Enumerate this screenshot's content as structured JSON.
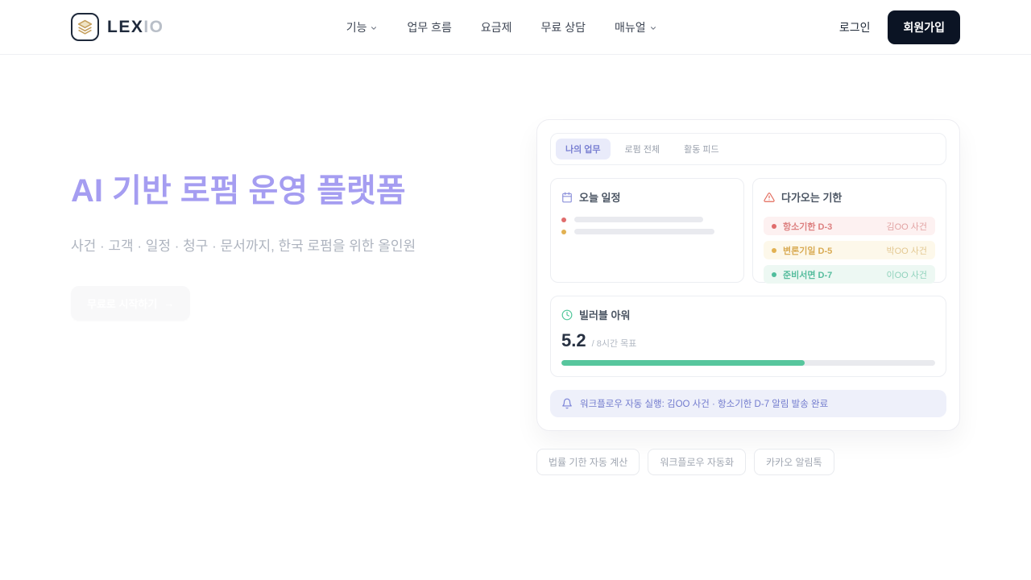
{
  "colors": {
    "brand_dark": "#0b1424",
    "accent_purple": "#a59df1",
    "tab_active_bg": "#e9ebfa",
    "tab_active_text": "#7a80d2",
    "status_red": "#e06c6c",
    "status_amber": "#e2b152",
    "status_teal": "#4fbd9c",
    "progress_fill": "#57c69d",
    "notification_bg": "#eef0fa",
    "logo_icon_gold": "#c6a05e"
  },
  "header": {
    "logo": {
      "icon": "layers-icon",
      "primary": "LEX",
      "secondary": "IO"
    },
    "nav": [
      {
        "label": "기능",
        "has_dropdown": true
      },
      {
        "label": "업무 흐름",
        "has_dropdown": false
      },
      {
        "label": "요금제",
        "has_dropdown": false
      },
      {
        "label": "무료 상담",
        "has_dropdown": false
      },
      {
        "label": "매뉴얼",
        "has_dropdown": true
      }
    ],
    "login_label": "로그인",
    "signup_label": "회원가입"
  },
  "hero": {
    "title": "AI 기반 로펌 운영 플랫폼",
    "subtitle": "사건 · 고객 · 일정 · 청구 · 문서까지, 한국 로펌을 위한 올인원",
    "cta_label": "무료로 시작하기",
    "cta_arrow": "→"
  },
  "dashboard": {
    "tabs": [
      {
        "label": "나의 업무",
        "active": true
      },
      {
        "label": "로펌 전체",
        "active": false
      },
      {
        "label": "활동 피드",
        "active": false
      }
    ],
    "today": {
      "icon": "calendar-icon",
      "title": "오늘 일정"
    },
    "deadlines": {
      "icon": "alert-triangle-icon",
      "title": "다가오는 기한",
      "items": [
        {
          "label": "항소기한 D-3",
          "case": "김OO 사건",
          "status": "red"
        },
        {
          "label": "변론기일 D-5",
          "case": "박OO 사건",
          "status": "amber"
        },
        {
          "label": "준비서면 D-7",
          "case": "이OO 사건",
          "status": "teal"
        }
      ]
    },
    "billable": {
      "icon": "clock-icon",
      "title": "빌러블 아워",
      "value": "5.2",
      "target": "/ 8시간 목표",
      "progress_percent": 65
    },
    "notification": {
      "icon": "bell-icon",
      "text": "워크플로우 자동 실행: 김OO 사건 · 항소기한 D-7 알림 발송 완료"
    }
  },
  "tags": [
    {
      "label": "법률 기한 자동 계산"
    },
    {
      "label": "워크플로우 자동화"
    },
    {
      "label": "카카오 알림톡"
    }
  ]
}
